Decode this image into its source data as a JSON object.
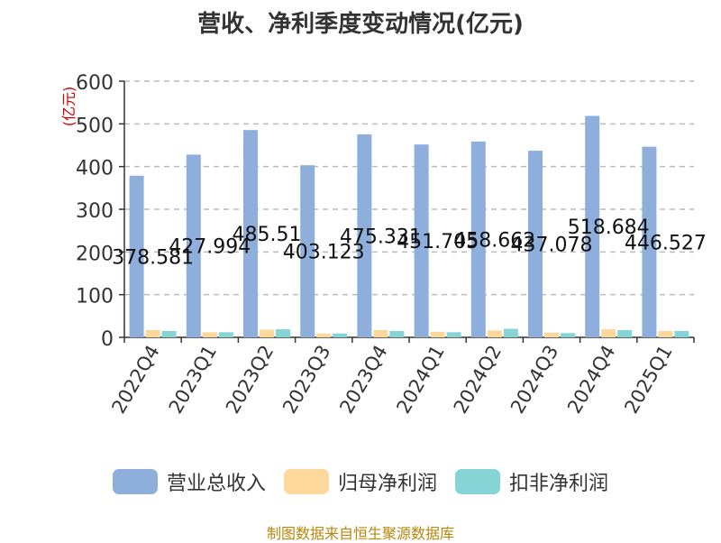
{
  "chart_data": {
    "type": "bar",
    "title": "营收、净利季度变动情况(亿元)",
    "ylabel": "(亿元)",
    "ylim": [
      0,
      600
    ],
    "yticks": [
      0,
      100,
      200,
      300,
      400,
      500,
      600
    ],
    "grid": true,
    "legend_position": "bottom",
    "categories": [
      "2022Q4",
      "2023Q1",
      "2023Q2",
      "2023Q3",
      "2023Q4",
      "2024Q1",
      "2024Q2",
      "2024Q3",
      "2024Q4",
      "2025Q1"
    ],
    "series": [
      {
        "name": "营业总收入",
        "color": "#8eaedc",
        "values": [
          378.581,
          427.994,
          485.51,
          403.123,
          475.331,
          451.705,
          458.662,
          437.078,
          518.684,
          446.527
        ],
        "labels": [
          "378.581",
          "427.994",
          "485.51",
          "403.123",
          "475.331",
          "451.705",
          "458.662",
          "437.078",
          "518.684",
          "446.527"
        ]
      },
      {
        "name": "归母净利润",
        "color": "#fdd89a",
        "values": [
          17,
          12,
          18,
          9,
          17,
          13,
          16,
          11,
          19,
          15
        ]
      },
      {
        "name": "扣非净利润",
        "color": "#86d4d6",
        "values": [
          15,
          12,
          19,
          9,
          15,
          12,
          20,
          10,
          17,
          15
        ]
      }
    ]
  },
  "footer": {
    "source": "制图数据来自恒生聚源数据库"
  }
}
